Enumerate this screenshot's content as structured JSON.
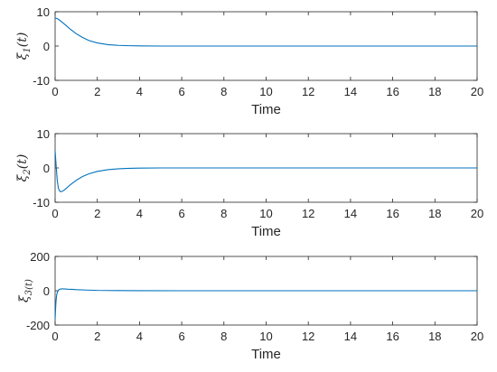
{
  "chart_data": [
    {
      "type": "line",
      "xlabel": "Time",
      "ylabel": "ξ1(t)",
      "ylabel_main": "ξ",
      "ylabel_sub": "1",
      "ylabel_tail": "(t)",
      "xlim": [
        0,
        20
      ],
      "ylim": [
        -10,
        10
      ],
      "xticks": [
        0,
        2,
        4,
        6,
        8,
        10,
        12,
        14,
        16,
        18,
        20
      ],
      "xtick_labels": [
        "0",
        "2",
        "4",
        "6",
        "8",
        "10",
        "12",
        "14",
        "16",
        "18",
        "20"
      ],
      "yticks": [
        -10,
        0,
        10
      ],
      "ytick_labels": [
        "-10",
        "0",
        "10"
      ],
      "grid": false,
      "series": [
        {
          "color": "#0072BD",
          "x": [
            0,
            0.1,
            0.2,
            0.3,
            0.5,
            0.7,
            1.0,
            1.3,
            1.6,
            2.0,
            2.5,
            3.0,
            3.5,
            4.0,
            5.0,
            6.0,
            8.0,
            10.0,
            14.0,
            20.0
          ],
          "y": [
            8.2,
            8.0,
            7.6,
            7.1,
            6.1,
            5.0,
            3.6,
            2.5,
            1.6,
            0.9,
            0.4,
            0.2,
            0.1,
            0.05,
            0.0,
            0.0,
            0.0,
            0.0,
            0.0,
            0.0
          ]
        }
      ]
    },
    {
      "type": "line",
      "xlabel": "Time",
      "ylabel": "ξ2(t)",
      "ylabel_main": "ξ",
      "ylabel_sub": "2",
      "ylabel_tail": "(t)",
      "xlim": [
        0,
        20
      ],
      "ylim": [
        -10,
        10
      ],
      "xticks": [
        0,
        2,
        4,
        6,
        8,
        10,
        12,
        14,
        16,
        18,
        20
      ],
      "xtick_labels": [
        "0",
        "2",
        "4",
        "6",
        "8",
        "10",
        "12",
        "14",
        "16",
        "18",
        "20"
      ],
      "yticks": [
        -10,
        0,
        10
      ],
      "ytick_labels": [
        "-10",
        "0",
        "10"
      ],
      "grid": false,
      "series": [
        {
          "color": "#0072BD",
          "x": [
            0,
            0.05,
            0.1,
            0.15,
            0.2,
            0.25,
            0.3,
            0.4,
            0.5,
            0.7,
            1.0,
            1.3,
            1.6,
            2.0,
            2.5,
            3.0,
            3.5,
            4.0,
            5.0,
            6.0,
            8.0,
            10.0,
            14.0,
            20.0
          ],
          "y": [
            5.0,
            0.5,
            -3.5,
            -5.8,
            -6.6,
            -6.9,
            -6.9,
            -6.6,
            -6.1,
            -5.0,
            -3.6,
            -2.5,
            -1.7,
            -1.0,
            -0.5,
            -0.25,
            -0.12,
            -0.06,
            0.0,
            0.0,
            0.0,
            0.0,
            0.0,
            0.0
          ]
        }
      ]
    },
    {
      "type": "line",
      "xlabel": "Time",
      "ylabel": "ξ3(t)",
      "ylabel_main": "ξ",
      "ylabel_sub": "3(t)",
      "ylabel_tail": "",
      "xlim": [
        0,
        20
      ],
      "ylim": [
        -200,
        200
      ],
      "xticks": [
        0,
        2,
        4,
        6,
        8,
        10,
        12,
        14,
        16,
        18,
        20
      ],
      "xtick_labels": [
        "0",
        "2",
        "4",
        "6",
        "8",
        "10",
        "12",
        "14",
        "16",
        "18",
        "20"
      ],
      "yticks": [
        -200,
        0,
        200
      ],
      "ytick_labels": [
        "-200",
        "0",
        "200"
      ],
      "grid": false,
      "series": [
        {
          "color": "#0072BD",
          "x": [
            0,
            0.02,
            0.04,
            0.07,
            0.1,
            0.15,
            0.2,
            0.3,
            0.4,
            0.6,
            0.8,
            1.0,
            1.5,
            2.0,
            3.0,
            4.0,
            6.0,
            10.0,
            20.0
          ],
          "y": [
            -165,
            -110,
            -65,
            -28,
            -10,
            2,
            8,
            11,
            11,
            9,
            8,
            6,
            4,
            2,
            1,
            0.5,
            0,
            0,
            0
          ]
        }
      ]
    }
  ]
}
